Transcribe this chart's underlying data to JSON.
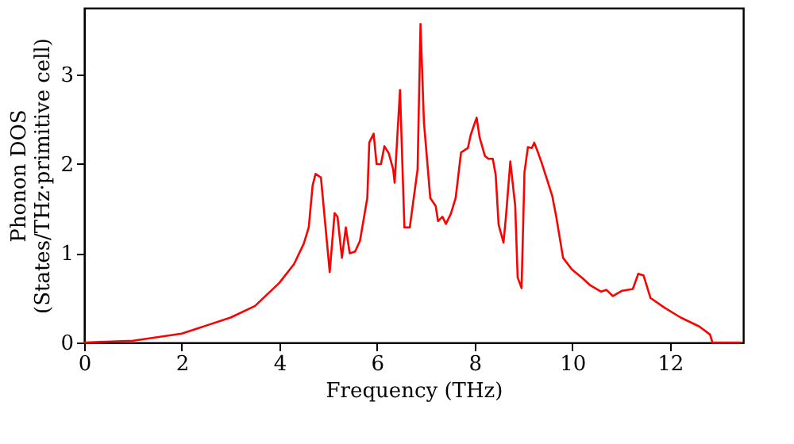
{
  "chart_data": {
    "type": "line",
    "xlabel": "Frequency (THz)",
    "ylabel": "Phonon DOS\n(States/THz·primitive cell)",
    "x": [
      0,
      1,
      2,
      3,
      3.5,
      4,
      4.3,
      4.5,
      4.6,
      4.68,
      4.74,
      4.85,
      5.03,
      5.13,
      5.19,
      5.28,
      5.36,
      5.44,
      5.55,
      5.65,
      5.8,
      5.84,
      5.93,
      5.99,
      6.08,
      6.15,
      6.24,
      6.33,
      6.36,
      6.47,
      6.56,
      6.67,
      6.83,
      6.89,
      6.96,
      7.09,
      7.2,
      7.25,
      7.34,
      7.41,
      7.51,
      7.61,
      7.72,
      7.86,
      7.92,
      8.04,
      8.1,
      8.21,
      8.28,
      8.37,
      8.43,
      8.49,
      8.59,
      8.64,
      8.73,
      8.83,
      8.88,
      8.96,
      9.02,
      9.09,
      9.17,
      9.22,
      9.29,
      9.38,
      9.59,
      9.67,
      9.81,
      9.99,
      10.21,
      10.37,
      10.59,
      10.7,
      10.83,
      11.02,
      11.24,
      11.35,
      11.46,
      11.6,
      11.89,
      12.22,
      12.6,
      12.82,
      12.87,
      13.46
    ],
    "series": [
      {
        "color": "#ff0000",
        "values": [
          0,
          0.02,
          0.1,
          0.28,
          0.41,
          0.67,
          0.88,
          1.11,
          1.29,
          1.76,
          1.89,
          1.85,
          0.79,
          1.45,
          1.41,
          0.95,
          1.29,
          1.0,
          1.02,
          1.14,
          1.62,
          2.24,
          2.34,
          2.0,
          2.0,
          2.2,
          2.12,
          1.94,
          1.79,
          2.83,
          1.29,
          1.29,
          1.94,
          3.57,
          2.47,
          1.62,
          1.53,
          1.36,
          1.41,
          1.33,
          1.44,
          1.62,
          2.13,
          2.18,
          2.33,
          2.52,
          2.3,
          2.09,
          2.06,
          2.06,
          1.88,
          1.32,
          1.12,
          1.41,
          2.03,
          1.53,
          0.73,
          0.61,
          1.91,
          2.19,
          2.18,
          2.24,
          2.14,
          2.0,
          1.64,
          1.41,
          0.95,
          0.82,
          0.72,
          0.64,
          0.57,
          0.59,
          0.52,
          0.58,
          0.6,
          0.77,
          0.75,
          0.5,
          0.39,
          0.28,
          0.18,
          0.09,
          0,
          0
        ]
      }
    ],
    "xlim": [
      0,
      13.5
    ],
    "xticks": [
      0,
      2,
      4,
      6,
      8,
      10,
      12
    ],
    "ylim": [
      0,
      3.75
    ],
    "yticks": [
      0,
      1,
      2,
      3
    ],
    "grid": false,
    "legend": false,
    "line_style": "solid",
    "marker": "none"
  }
}
